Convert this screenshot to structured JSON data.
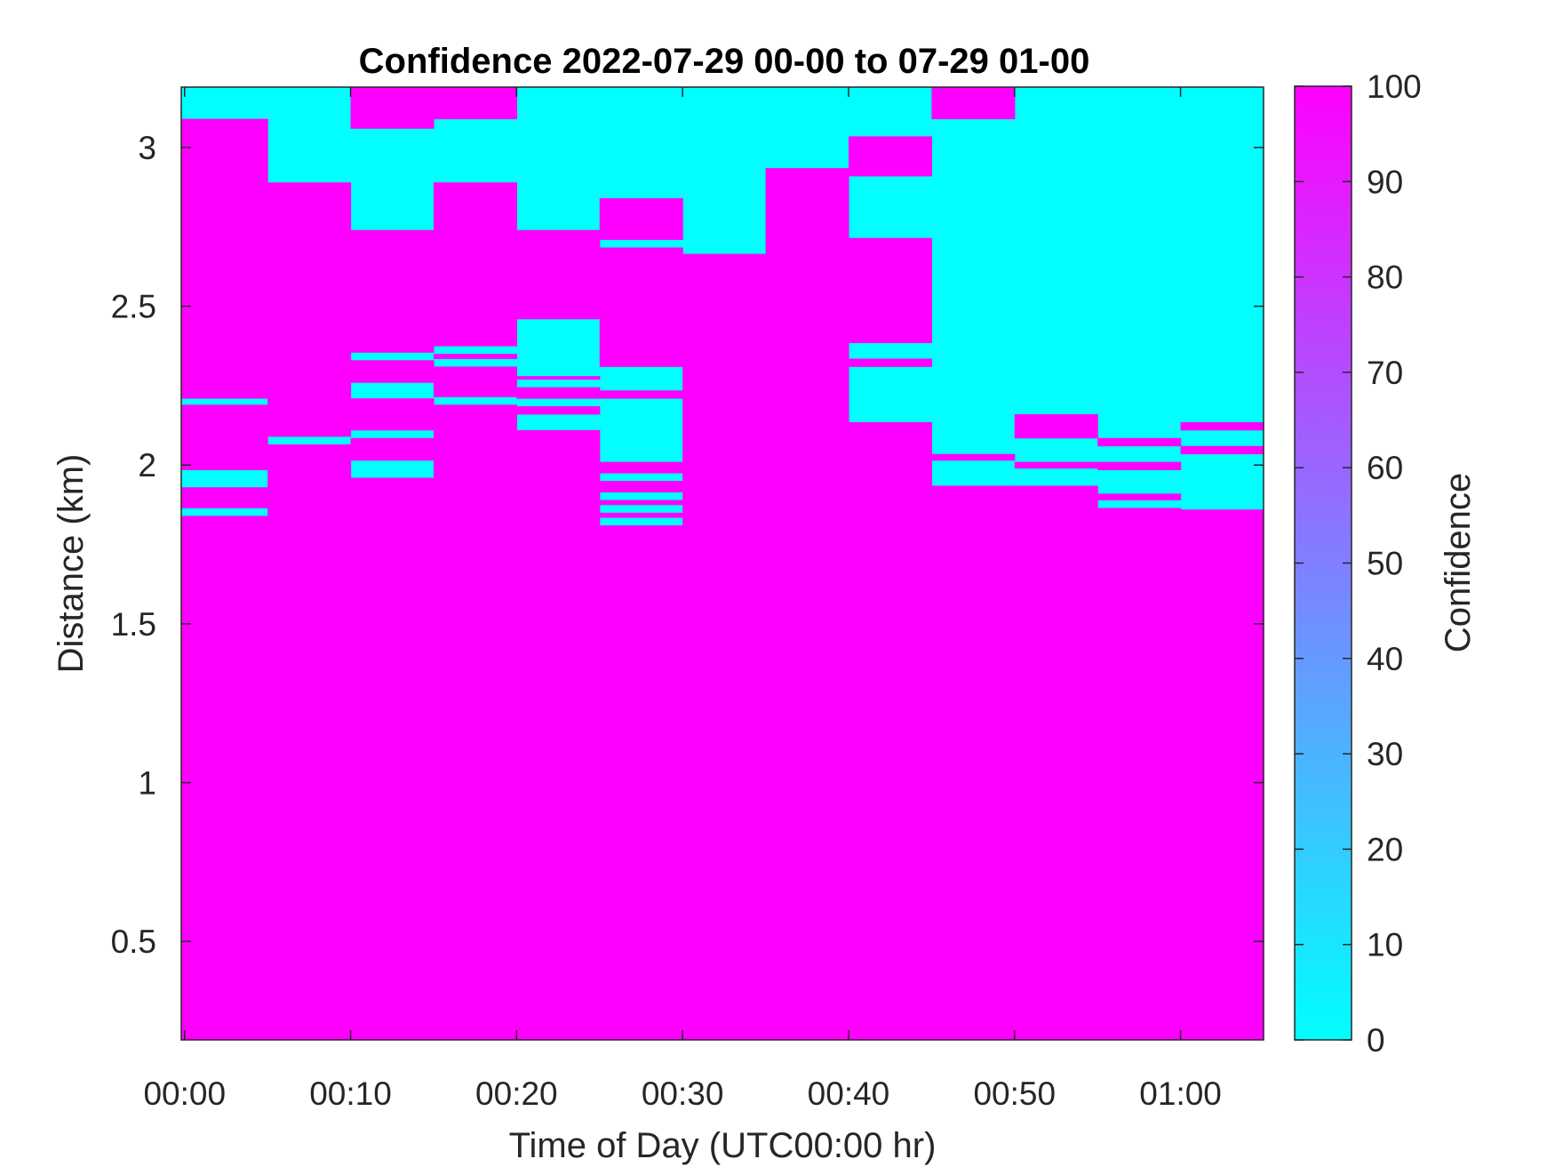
{
  "chart_data": {
    "type": "heatmap",
    "title": "Confidence 2022-07-29 00-00 to 07-29 01-00",
    "xlabel": "Time of Day (UTC00:00 hr)",
    "ylabel": "Distance (km)",
    "x_ticks": [
      "00:00",
      "00:10",
      "00:20",
      "00:30",
      "00:40",
      "00:50",
      "01:00"
    ],
    "x_tick_minutes": [
      0,
      10,
      20,
      30,
      40,
      50,
      60
    ],
    "xlim_minutes": [
      -0.2,
      65
    ],
    "y_ticks": [
      "0.5",
      "1",
      "1.5",
      "2",
      "2.5",
      "3"
    ],
    "y_tick_values": [
      0.5,
      1,
      1.5,
      2,
      2.5,
      3
    ],
    "ylim": [
      0.19,
      3.19
    ],
    "colorbar": {
      "label": "Confidence",
      "range": [
        0,
        100
      ],
      "ticks": [
        "0",
        "10",
        "20",
        "30",
        "40",
        "50",
        "60",
        "70",
        "80",
        "90",
        "100"
      ],
      "colors": [
        "#00ffff",
        "#ff00ff"
      ]
    },
    "bin_minutes": 5,
    "columns": [
      {
        "time_start_min": -0.2,
        "time_end_min": 5,
        "high_confidence": [
          [
            0.19,
            1.84
          ],
          [
            1.865,
            1.93
          ],
          [
            1.985,
            2.19
          ],
          [
            2.21,
            3.09
          ]
        ]
      },
      {
        "time_start_min": 5,
        "time_end_min": 10,
        "high_confidence": [
          [
            0.19,
            2.065
          ],
          [
            2.09,
            2.89
          ]
        ]
      },
      {
        "time_start_min": 10,
        "time_end_min": 15,
        "high_confidence": [
          [
            0.19,
            1.96
          ],
          [
            2.015,
            2.085
          ],
          [
            2.11,
            2.21
          ],
          [
            2.26,
            2.33
          ],
          [
            2.355,
            2.74
          ],
          [
            3.06,
            3.19
          ]
        ]
      },
      {
        "time_start_min": 15,
        "time_end_min": 20,
        "high_confidence": [
          [
            0.19,
            2.19
          ],
          [
            2.215,
            2.31
          ],
          [
            2.335,
            2.35
          ],
          [
            2.375,
            2.89
          ],
          [
            3.09,
            3.19
          ]
        ]
      },
      {
        "time_start_min": 20,
        "time_end_min": 25,
        "high_confidence": [
          [
            0.19,
            2.11
          ],
          [
            2.16,
            2.185
          ],
          [
            2.21,
            2.245
          ],
          [
            2.27,
            2.28
          ],
          [
            2.46,
            2.74
          ]
        ]
      },
      {
        "time_start_min": 25,
        "time_end_min": 30,
        "high_confidence": [
          [
            0.19,
            1.81
          ],
          [
            1.835,
            1.85
          ],
          [
            1.875,
            1.89
          ],
          [
            1.915,
            1.95
          ],
          [
            1.975,
            2.01
          ],
          [
            2.21,
            2.235
          ],
          [
            2.31,
            2.685
          ],
          [
            2.71,
            2.84
          ]
        ]
      },
      {
        "time_start_min": 30,
        "time_end_min": 35,
        "high_confidence": [
          [
            0.19,
            2.665
          ]
        ]
      },
      {
        "time_start_min": 35,
        "time_end_min": 40,
        "high_confidence": [
          [
            0.19,
            2.935
          ]
        ]
      },
      {
        "time_start_min": 40,
        "time_end_min": 45,
        "high_confidence": [
          [
            0.19,
            2.135
          ],
          [
            2.31,
            2.335
          ],
          [
            2.385,
            2.715
          ],
          [
            2.91,
            3.035
          ]
        ]
      },
      {
        "time_start_min": 45,
        "time_end_min": 50,
        "high_confidence": [
          [
            0.19,
            1.935
          ],
          [
            2.015,
            2.035
          ],
          [
            3.09,
            3.19
          ]
        ]
      },
      {
        "time_start_min": 50,
        "time_end_min": 55,
        "high_confidence": [
          [
            0.19,
            1.935
          ],
          [
            1.99,
            2.01
          ],
          [
            2.085,
            2.16
          ]
        ]
      },
      {
        "time_start_min": 55,
        "time_end_min": 60,
        "high_confidence": [
          [
            0.19,
            1.865
          ],
          [
            1.89,
            1.91
          ],
          [
            1.985,
            2.01
          ],
          [
            2.06,
            2.085
          ]
        ]
      },
      {
        "time_start_min": 60,
        "time_end_min": 65,
        "high_confidence": [
          [
            0.19,
            1.86
          ],
          [
            2.035,
            2.06
          ],
          [
            2.11,
            2.135
          ]
        ]
      }
    ]
  }
}
